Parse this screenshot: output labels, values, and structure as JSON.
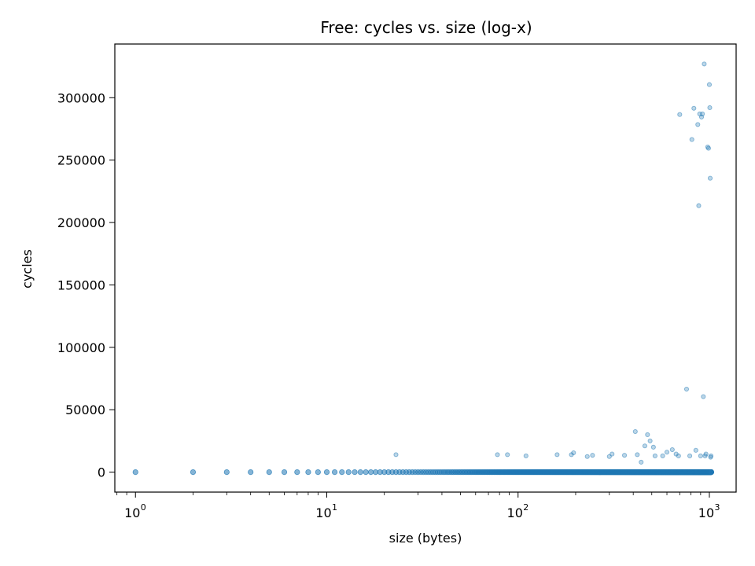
{
  "chart_data": {
    "type": "scatter",
    "title": "Free: cycles vs. size (log-x)",
    "xlabel": "size (bytes)",
    "ylabel": "cycles",
    "xscale": "log",
    "xlim": [
      0.78,
      1380
    ],
    "ylim": [
      -16000,
      343000
    ],
    "x_ticks": [
      {
        "base": "10",
        "exp": "0",
        "value": 1
      },
      {
        "base": "10",
        "exp": "1",
        "value": 10
      },
      {
        "base": "10",
        "exp": "2",
        "value": 100
      },
      {
        "base": "10",
        "exp": "3",
        "value": 1000
      }
    ],
    "y_ticks": [
      {
        "label": "0",
        "value": 0
      },
      {
        "label": "50000",
        "value": 50000
      },
      {
        "label": "100000",
        "value": 100000
      },
      {
        "label": "150000",
        "value": 150000
      },
      {
        "label": "200000",
        "value": 200000
      },
      {
        "label": "250000",
        "value": 250000
      },
      {
        "label": "300000",
        "value": 300000
      }
    ],
    "grid": false,
    "legend": "none",
    "marker_color": "#1f77b4",
    "marker_alpha": 0.3,
    "baseline": {
      "x_min": 1,
      "x_max": 1024,
      "y": 0,
      "note": "one point per integer size near 0 cycles"
    },
    "points": [
      [
        23,
        14000
      ],
      [
        78,
        14000
      ],
      [
        88,
        14000
      ],
      [
        110,
        13000
      ],
      [
        160,
        14000
      ],
      [
        190,
        14000
      ],
      [
        195,
        15500
      ],
      [
        230,
        12500
      ],
      [
        245,
        13500
      ],
      [
        300,
        12500
      ],
      [
        310,
        14500
      ],
      [
        360,
        13500
      ],
      [
        410,
        32500
      ],
      [
        420,
        14000
      ],
      [
        440,
        8000
      ],
      [
        460,
        21000
      ],
      [
        475,
        30000
      ],
      [
        490,
        25000
      ],
      [
        510,
        20000
      ],
      [
        520,
        13000
      ],
      [
        570,
        13000
      ],
      [
        600,
        16000
      ],
      [
        640,
        18000
      ],
      [
        670,
        14500
      ],
      [
        690,
        13000
      ],
      [
        700,
        286500
      ],
      [
        760,
        66500
      ],
      [
        790,
        13000
      ],
      [
        810,
        266500
      ],
      [
        830,
        291500
      ],
      [
        850,
        17500
      ],
      [
        870,
        278500
      ],
      [
        880,
        213500
      ],
      [
        890,
        287000
      ],
      [
        900,
        13000
      ],
      [
        910,
        284500
      ],
      [
        920,
        287000
      ],
      [
        930,
        60500
      ],
      [
        940,
        327000
      ],
      [
        950,
        13000
      ],
      [
        960,
        14500
      ],
      [
        980,
        260500
      ],
      [
        990,
        259500
      ],
      [
        1000,
        310500
      ],
      [
        1005,
        292000
      ],
      [
        1010,
        235500
      ],
      [
        1015,
        12000
      ],
      [
        1020,
        13000
      ]
    ]
  }
}
